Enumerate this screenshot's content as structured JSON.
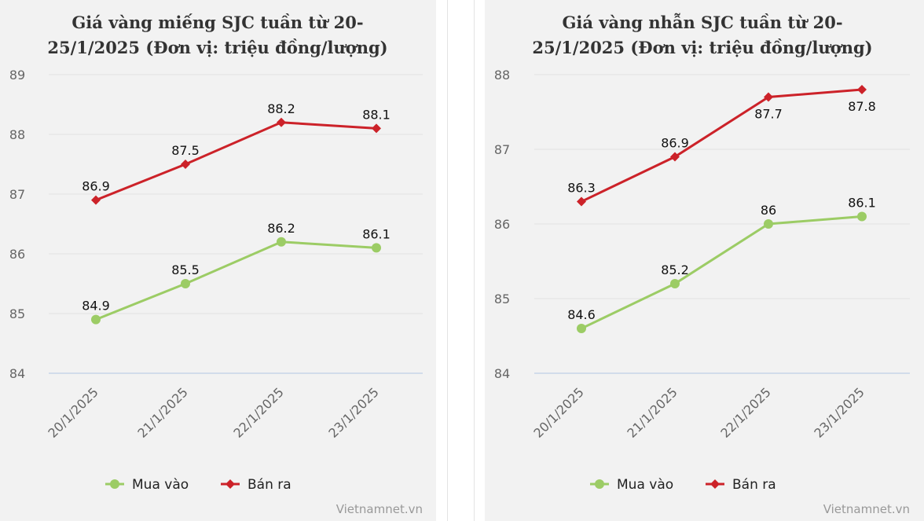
{
  "credit": "Vietnamnet.vn",
  "chart_data": [
    {
      "type": "line",
      "title_lines": [
        "Giá vàng miếng SJC tuần từ 20-",
        "25/1/2025 (Đơn vị: triệu đồng/lượng)"
      ],
      "categories": [
        "20/1/2025",
        "21/1/2025",
        "22/1/2025",
        "23/1/2025"
      ],
      "ylim": [
        84,
        89
      ],
      "yticks": [
        "84",
        "85",
        "86",
        "87",
        "88",
        "89"
      ],
      "grid": true,
      "legend": "bottom",
      "series": [
        {
          "name": "Mua vào",
          "color": "#9ccc65",
          "marker": "circle",
          "values": [
            84.9,
            85.5,
            86.2,
            86.1
          ],
          "labels": [
            "84.9",
            "85.5",
            "86.2",
            "86.1"
          ]
        },
        {
          "name": "Bán ra",
          "color": "#cc2229",
          "marker": "diamond",
          "values": [
            86.9,
            87.5,
            88.2,
            88.1
          ],
          "labels": [
            "86.9",
            "87.5",
            "88.2",
            "88.1"
          ]
        }
      ]
    },
    {
      "type": "line",
      "title_lines": [
        "Giá vàng nhẫn SJC tuần từ 20-",
        "25/1/2025 (Đơn vị: triệu đồng/lượng)"
      ],
      "categories": [
        "20/1/2025",
        "21/1/2025",
        "22/1/2025",
        "23/1/2025"
      ],
      "ylim": [
        84,
        88
      ],
      "yticks": [
        "84",
        "85",
        "86",
        "87",
        "88"
      ],
      "grid": true,
      "legend": "bottom",
      "series": [
        {
          "name": "Mua vào",
          "color": "#9ccc65",
          "marker": "circle",
          "values": [
            84.6,
            85.2,
            86.0,
            86.1
          ],
          "labels": [
            "84.6",
            "85.2",
            "86",
            "86.1"
          ]
        },
        {
          "name": "Bán ra",
          "color": "#cc2229",
          "marker": "diamond",
          "values": [
            86.3,
            86.9,
            87.7,
            87.8
          ],
          "labels": [
            "86.3",
            "86.9",
            "87.7",
            "87.8"
          ]
        }
      ]
    }
  ]
}
